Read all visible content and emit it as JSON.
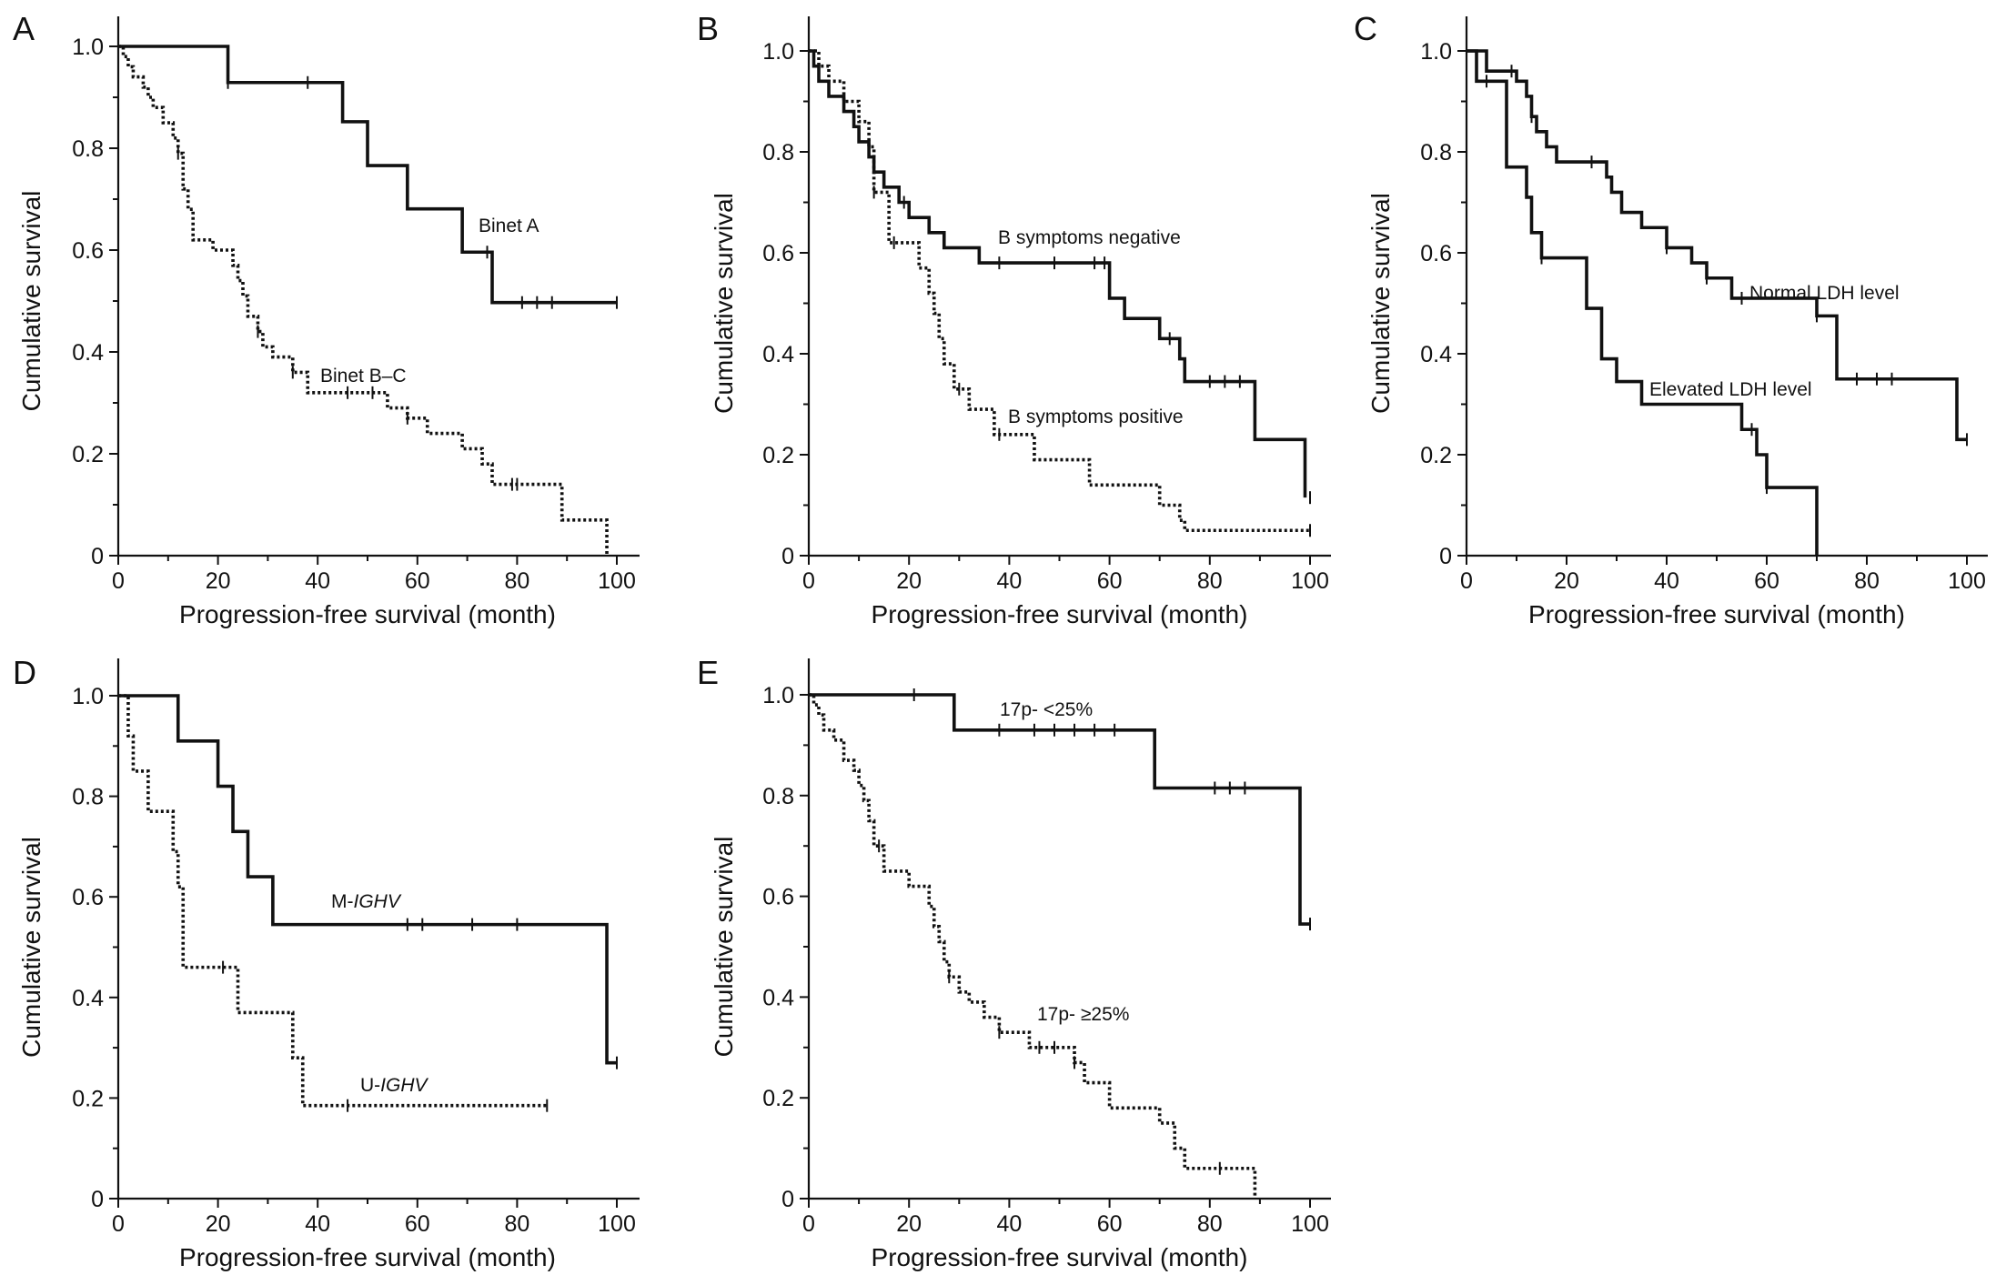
{
  "chart_data": [
    {
      "panel": "A",
      "type": "line",
      "step": true,
      "xlabel": "Progression-free survival (month)",
      "ylabel": "Cumulative survival",
      "xlim": [
        0,
        100
      ],
      "ylim": [
        0,
        1
      ],
      "xticks": [
        "0",
        "20",
        "40",
        "60",
        "80",
        "100"
      ],
      "yticks": [
        "0",
        "0.2",
        "0.4",
        "0.6",
        "0.8",
        "1.0"
      ],
      "series": [
        {
          "name": "Binet A",
          "style": "solid",
          "x": [
            0,
            22,
            45,
            50,
            58,
            69,
            75,
            100
          ],
          "y": [
            1.0,
            0.929,
            0.852,
            0.766,
            0.681,
            0.596,
            0.497,
            0.497
          ],
          "censored_x": [
            22,
            38,
            74,
            81,
            84,
            87,
            100
          ]
        },
        {
          "name": "Binet B–C",
          "style": "dotted",
          "x": [
            0,
            1,
            2,
            3,
            5,
            6,
            7,
            9,
            11,
            12,
            13,
            14,
            15,
            19,
            23,
            24,
            25,
            26,
            28,
            29,
            31,
            35,
            38,
            54,
            58,
            62,
            69,
            73,
            75,
            89,
            98
          ],
          "y": [
            1.0,
            0.98,
            0.96,
            0.94,
            0.92,
            0.9,
            0.88,
            0.85,
            0.82,
            0.79,
            0.72,
            0.68,
            0.62,
            0.6,
            0.57,
            0.54,
            0.51,
            0.47,
            0.44,
            0.41,
            0.39,
            0.36,
            0.32,
            0.29,
            0.27,
            0.24,
            0.21,
            0.18,
            0.14,
            0.07,
            0.0
          ],
          "censored_x": [
            12,
            28,
            35,
            46,
            51,
            58,
            79,
            80
          ]
        }
      ]
    },
    {
      "panel": "B",
      "type": "line",
      "step": true,
      "xlabel": "Progression-free survival (month)",
      "ylabel": "Cumulative survival",
      "xlim": [
        0,
        100
      ],
      "ylim": [
        0,
        1
      ],
      "xticks": [
        "0",
        "20",
        "40",
        "60",
        "80",
        "100"
      ],
      "yticks": [
        "0",
        "0.2",
        "0.4",
        "0.6",
        "0.8",
        "1.0"
      ],
      "series": [
        {
          "name": "B symptoms negative",
          "style": "solid",
          "x": [
            0,
            1,
            2,
            4,
            7,
            9,
            10,
            12,
            13,
            15,
            18,
            20,
            24,
            27,
            30,
            34,
            36,
            60,
            63,
            70,
            74,
            75,
            89,
            99
          ],
          "y": [
            1.0,
            0.97,
            0.94,
            0.91,
            0.88,
            0.85,
            0.82,
            0.79,
            0.76,
            0.73,
            0.7,
            0.67,
            0.64,
            0.61,
            0.61,
            0.58,
            0.58,
            0.51,
            0.47,
            0.43,
            0.39,
            0.345,
            0.23,
            0.115
          ],
          "censored_x": [
            19,
            38,
            49,
            57,
            59,
            72,
            80,
            83,
            86,
            100
          ]
        },
        {
          "name": "B symptoms positive",
          "style": "dotted",
          "x": [
            0,
            2,
            4,
            7,
            10,
            12,
            13,
            16,
            22,
            24,
            25,
            26,
            27,
            29,
            30,
            32,
            37,
            40,
            45,
            54,
            56,
            70,
            74,
            75,
            100
          ],
          "y": [
            1.0,
            0.97,
            0.94,
            0.9,
            0.86,
            0.81,
            0.72,
            0.62,
            0.57,
            0.52,
            0.48,
            0.43,
            0.38,
            0.33,
            0.33,
            0.29,
            0.24,
            0.24,
            0.19,
            0.19,
            0.14,
            0.1,
            0.07,
            0.05,
            0.05
          ],
          "censored_x": [
            13,
            17,
            30,
            38,
            100
          ]
        }
      ]
    },
    {
      "panel": "C",
      "type": "line",
      "step": true,
      "xlabel": "Progression-free survival (month)",
      "ylabel": "Cumulative survival",
      "xlim": [
        0,
        100
      ],
      "ylim": [
        0,
        1
      ],
      "xticks": [
        "0",
        "20",
        "40",
        "60",
        "80",
        "100"
      ],
      "yticks": [
        "0",
        "0.2",
        "0.4",
        "0.6",
        "0.8",
        "1.0"
      ],
      "series": [
        {
          "name": "Normal LDH level",
          "style": "solid",
          "x": [
            0,
            4,
            7,
            10,
            12,
            13,
            14,
            16,
            18,
            25,
            28,
            29,
            31,
            35,
            40,
            45,
            48,
            53,
            55,
            70,
            74,
            98,
            100
          ],
          "y": [
            1.0,
            0.96,
            0.96,
            0.94,
            0.91,
            0.87,
            0.84,
            0.81,
            0.78,
            0.78,
            0.75,
            0.72,
            0.68,
            0.65,
            0.61,
            0.58,
            0.55,
            0.51,
            0.51,
            0.475,
            0.35,
            0.23,
            0.23
          ],
          "censored_x": [
            9,
            13,
            25,
            40,
            48,
            55,
            70,
            78,
            82,
            85,
            100
          ]
        },
        {
          "name": "Elevated LDH level",
          "style": "solid",
          "x": [
            0,
            2,
            8,
            12,
            13,
            15,
            21,
            24,
            27,
            30,
            35,
            52,
            55,
            58,
            60,
            70
          ],
          "y": [
            1.0,
            0.94,
            0.77,
            0.71,
            0.64,
            0.59,
            0.59,
            0.49,
            0.39,
            0.345,
            0.3,
            0.3,
            0.25,
            0.2,
            0.135,
            0.0
          ],
          "censored_x": [
            4,
            15,
            57,
            60
          ]
        }
      ]
    },
    {
      "panel": "D",
      "type": "line",
      "step": true,
      "xlabel": "Progression-free survival (month)",
      "ylabel": "Cumulative survival",
      "xlim": [
        0,
        100
      ],
      "ylim": [
        0,
        1
      ],
      "xticks": [
        "0",
        "20",
        "40",
        "60",
        "80",
        "100"
      ],
      "yticks": [
        "0.2",
        "0.4",
        "0.6",
        "0.8",
        "1.0"
      ],
      "bottom_tick": "0",
      "series": [
        {
          "name": "M-IGHV",
          "style": "solid",
          "x": [
            0,
            12,
            20,
            23,
            26,
            31,
            98,
            100
          ],
          "y": [
            1.0,
            0.91,
            0.82,
            0.73,
            0.64,
            0.545,
            0.27,
            0.27
          ],
          "censored_x": [
            58,
            61,
            71,
            80,
            100
          ]
        },
        {
          "name": "U-IGHV",
          "style": "dotted",
          "x": [
            0,
            2,
            3,
            6,
            11,
            12,
            13,
            22,
            23,
            24,
            35,
            36,
            37,
            86
          ],
          "y": [
            1.0,
            0.92,
            0.85,
            0.77,
            0.69,
            0.62,
            0.46,
            0.46,
            0.46,
            0.37,
            0.28,
            0.28,
            0.185,
            0.185
          ],
          "censored_x": [
            21,
            46,
            86
          ]
        }
      ]
    },
    {
      "panel": "E",
      "type": "line",
      "step": true,
      "xlabel": "Progression-free survival (month)",
      "ylabel": "Cumulative survival",
      "xlim": [
        0,
        100
      ],
      "ylim": [
        0,
        1
      ],
      "xticks": [
        "0",
        "20",
        "40",
        "60",
        "80",
        "100"
      ],
      "yticks": [
        "0",
        "0.2",
        "0.4",
        "0.6",
        "0.8",
        "1.0"
      ],
      "series": [
        {
          "name": "17p- <25%",
          "style": "solid",
          "x": [
            0,
            29,
            69,
            98,
            100
          ],
          "y": [
            1.0,
            0.93,
            0.815,
            0.545,
            0.545
          ],
          "censored_x": [
            21,
            38,
            45,
            49,
            53,
            57,
            61,
            81,
            84,
            87,
            100
          ]
        },
        {
          "name": "17p- ≥25%",
          "style": "dotted",
          "x": [
            0,
            1,
            2,
            3,
            5,
            7,
            9,
            10,
            11,
            12,
            13,
            15,
            20,
            24,
            25,
            26,
            27,
            28,
            30,
            32,
            35,
            38,
            44,
            53,
            55,
            60,
            70,
            73,
            75,
            89
          ],
          "y": [
            1.0,
            0.98,
            0.96,
            0.93,
            0.91,
            0.87,
            0.85,
            0.82,
            0.79,
            0.75,
            0.7,
            0.65,
            0.62,
            0.58,
            0.54,
            0.51,
            0.47,
            0.44,
            0.41,
            0.39,
            0.36,
            0.33,
            0.3,
            0.27,
            0.23,
            0.18,
            0.15,
            0.1,
            0.06,
            0.0
          ],
          "censored_x": [
            14,
            28,
            38,
            46,
            49,
            53,
            82
          ]
        }
      ]
    }
  ]
}
